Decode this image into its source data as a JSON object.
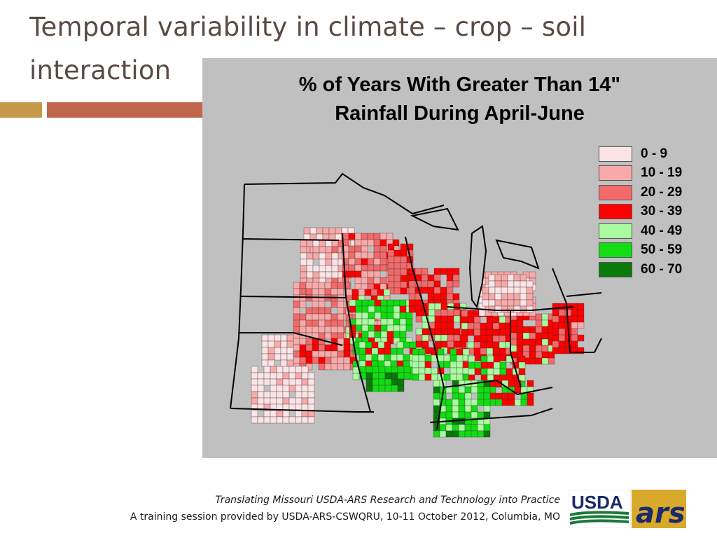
{
  "slide": {
    "title": "Temporal variability in climate – crop – soil interaction"
  },
  "figure": {
    "title_line1": "% of Years With Greater Than 14\"",
    "title_line2": "Rainfall During April-June",
    "legend": [
      {
        "label": "0 - 9",
        "color": "#fce4e6"
      },
      {
        "label": "10 - 19",
        "color": "#f8aaaa"
      },
      {
        "label": "20 - 29",
        "color": "#f26a6a"
      },
      {
        "label": "30 - 39",
        "color": "#ff0000"
      },
      {
        "label": "40 - 49",
        "color": "#aafaa0"
      },
      {
        "label": "50 - 59",
        "color": "#11dd11"
      },
      {
        "label": "60 - 70",
        "color": "#0a7a0a"
      }
    ]
  },
  "footer": {
    "line1": "Translating Missouri USDA-ARS Research and Technology into Practice",
    "line2": "A training session provided by USDA-ARS-CSWQRU, 10-11 October 2012, Columbia, MO"
  },
  "logo": {
    "usda_text": "USDA",
    "ars_text": "ars"
  }
}
